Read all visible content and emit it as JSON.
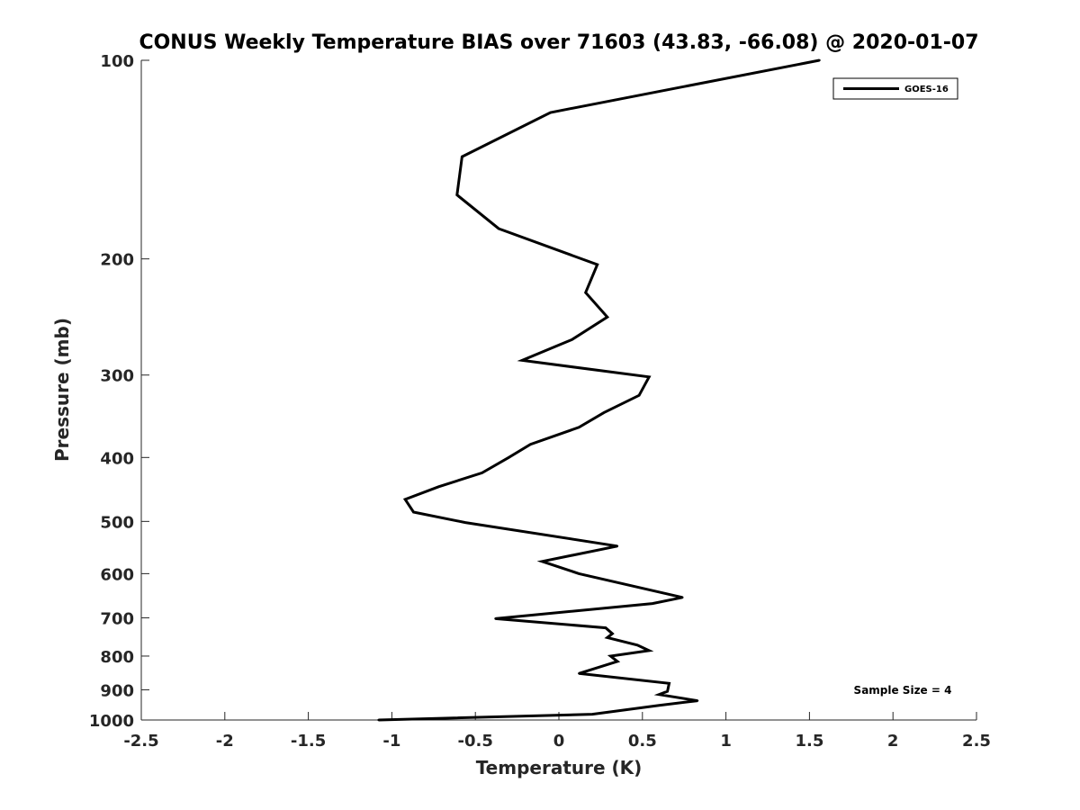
{
  "chart_data": {
    "type": "line",
    "title": "CONUS Weekly Temperature BIAS over 71603 (43.83, -66.08) @ 2020-01-07",
    "xlabel": "Temperature (K)",
    "ylabel": "Pressure (mb)",
    "xlim": [
      -2.5,
      2.5
    ],
    "ylim": [
      100,
      1000
    ],
    "yscale": "log",
    "yreversed": true,
    "grid": false,
    "legend_position": "top-right",
    "x_ticks": [
      -2.5,
      -2,
      -1.5,
      -1,
      -0.5,
      0,
      0.5,
      1,
      1.5,
      2,
      2.5
    ],
    "x_tick_labels": [
      "-2.5",
      "-2",
      "-1.5",
      "-1",
      "-0.5",
      "0",
      "0.5",
      "1",
      "1.5",
      "2",
      "2.5"
    ],
    "y_ticks": [
      100,
      200,
      300,
      400,
      500,
      600,
      700,
      800,
      900,
      1000
    ],
    "y_tick_labels": [
      "100",
      "200",
      "300",
      "400",
      "500",
      "600",
      "700",
      "800",
      "900",
      "1000"
    ],
    "series": [
      {
        "name": "GOES-16",
        "color": "#000000",
        "points": [
          {
            "x": 1.56,
            "y": 100
          },
          {
            "x": -0.05,
            "y": 120
          },
          {
            "x": -0.58,
            "y": 140
          },
          {
            "x": -0.61,
            "y": 160
          },
          {
            "x": -0.36,
            "y": 180
          },
          {
            "x": 0.23,
            "y": 204
          },
          {
            "x": 0.16,
            "y": 225
          },
          {
            "x": 0.29,
            "y": 245
          },
          {
            "x": 0.08,
            "y": 265
          },
          {
            "x": -0.22,
            "y": 285
          },
          {
            "x": 0.54,
            "y": 302
          },
          {
            "x": 0.48,
            "y": 322
          },
          {
            "x": 0.27,
            "y": 342
          },
          {
            "x": 0.12,
            "y": 360
          },
          {
            "x": -0.17,
            "y": 382
          },
          {
            "x": -0.3,
            "y": 400
          },
          {
            "x": -0.46,
            "y": 422
          },
          {
            "x": -0.72,
            "y": 443
          },
          {
            "x": -0.92,
            "y": 463
          },
          {
            "x": -0.87,
            "y": 484
          },
          {
            "x": -0.56,
            "y": 502
          },
          {
            "x": 0.35,
            "y": 545
          },
          {
            "x": -0.1,
            "y": 575
          },
          {
            "x": 0.12,
            "y": 600
          },
          {
            "x": 0.74,
            "y": 652
          },
          {
            "x": 0.56,
            "y": 666
          },
          {
            "x": -0.38,
            "y": 702
          },
          {
            "x": 0.28,
            "y": 725
          },
          {
            "x": 0.32,
            "y": 740
          },
          {
            "x": 0.29,
            "y": 750
          },
          {
            "x": 0.47,
            "y": 770
          },
          {
            "x": 0.54,
            "y": 785
          },
          {
            "x": 0.31,
            "y": 800
          },
          {
            "x": 0.35,
            "y": 815
          },
          {
            "x": 0.12,
            "y": 850
          },
          {
            "x": 0.66,
            "y": 880
          },
          {
            "x": 0.65,
            "y": 905
          },
          {
            "x": 0.6,
            "y": 915
          },
          {
            "x": 0.83,
            "y": 935
          },
          {
            "x": 0.6,
            "y": 950
          },
          {
            "x": 0.2,
            "y": 980
          },
          {
            "x": -1.08,
            "y": 1000
          }
        ]
      }
    ],
    "annotation": "Sample Size = 4"
  }
}
